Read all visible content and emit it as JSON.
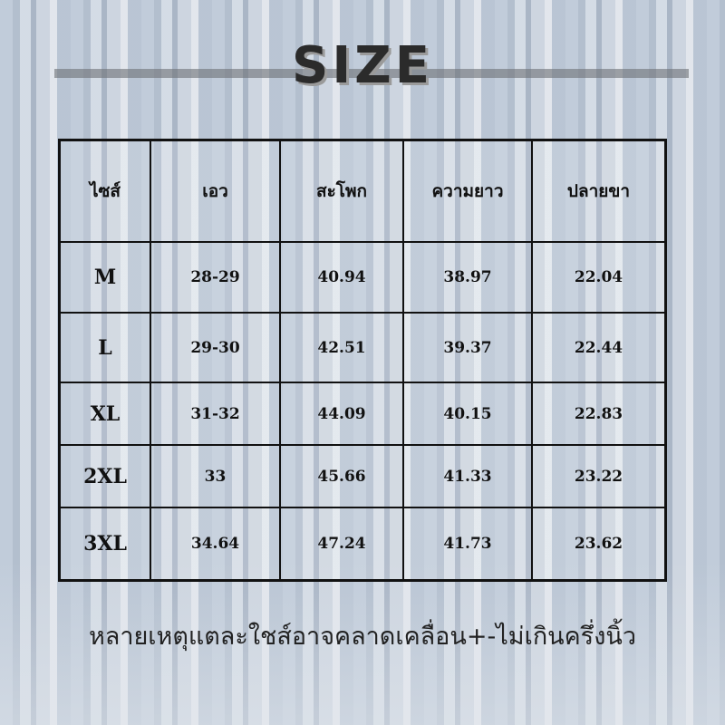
{
  "title": "SIZE",
  "table": {
    "headers": [
      "ไซส์",
      "เอว",
      "สะโพก",
      "ความยาว",
      "ปลายขา"
    ],
    "rows": [
      [
        "M",
        "28-29",
        "40.94",
        "38.97",
        "22.04"
      ],
      [
        "L",
        "29-30",
        "42.51",
        "39.37",
        "22.44"
      ],
      [
        "XL",
        "31-32",
        "44.09",
        "40.15",
        "22.83"
      ],
      [
        "2XL",
        "33",
        "45.66",
        "41.33",
        "23.22"
      ],
      [
        "3XL",
        "34.64",
        "47.24",
        "41.73",
        "23.62"
      ]
    ]
  },
  "note": "หลายเหตุแตละใชส์อาจคลาดเคลื่อน+-ไม่เกินครึ่งนิ้ว"
}
